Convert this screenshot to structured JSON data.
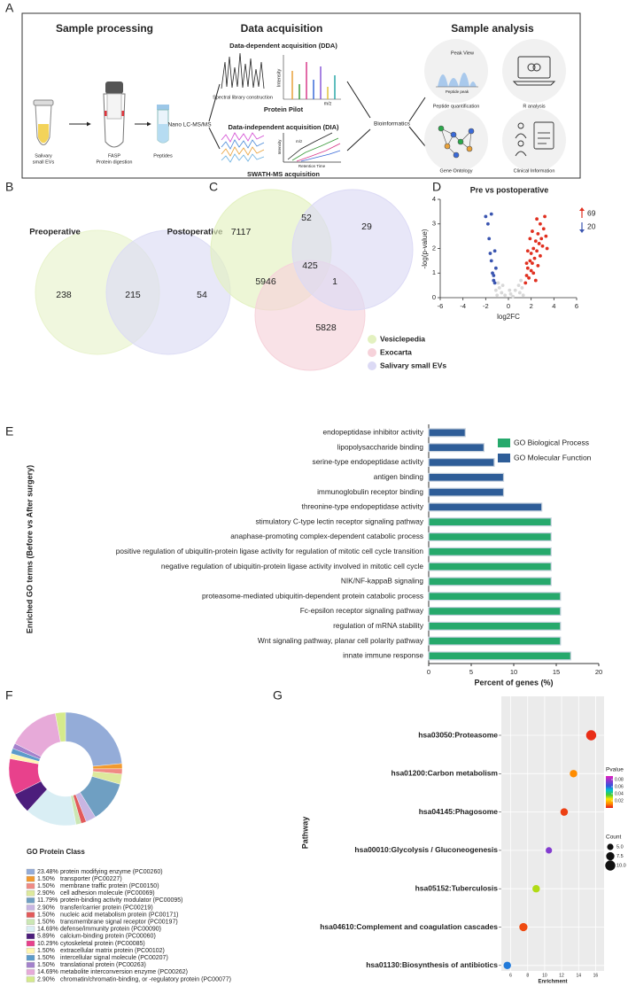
{
  "panel_labels": [
    "A",
    "B",
    "C",
    "D",
    "E",
    "F",
    "G"
  ],
  "workflow": {
    "sample_processing": {
      "title": "Sample processing",
      "items": [
        [
          "Salivary",
          "small EVs"
        ],
        [
          "FASP",
          "Protein digestion"
        ],
        [
          "Peptides"
        ]
      ]
    },
    "instrument": "Nano LC-MS/MS",
    "data_acquisition": {
      "title": "Data acquisition",
      "dda": "Data-dependent acquisition (DDA)",
      "dda_plot": "Spectral library construction",
      "dda_software": "Protein Pilot",
      "dda_axes": [
        "Intensity",
        "m/z"
      ],
      "dia": "Data-independent acquisition (DIA)",
      "dia_axes": [
        "Intensity",
        "m/z",
        "Retention Time"
      ],
      "dia_software": "SWATH-MS acquisition"
    },
    "bioinformatics": "Bioinformatics",
    "sample_analysis": {
      "title": "Sample analysis",
      "peak_view": "Peak View",
      "peak_axis": "Peptide peak",
      "items": [
        "Peptide quantification",
        "R analysis",
        "Gene Ontology",
        "Clinical Information"
      ]
    }
  },
  "chart_data": [
    {
      "type": "venn",
      "sets": [
        "Preoperative",
        "Postoperative"
      ],
      "colors": [
        "#e8f3cc",
        "#dcdcf4"
      ],
      "values": [
        238,
        215,
        54
      ],
      "legend": false
    },
    {
      "type": "venn",
      "sets": [
        "Vesiclepedia",
        "Exocarta",
        "Salivary small EVs"
      ],
      "colors": [
        "#e3f1c0",
        "#f6d2da",
        "#dcdaf5"
      ],
      "values": [
        7117,
        52,
        29,
        425,
        5946,
        1,
        5828
      ],
      "legend": true
    },
    {
      "type": "scatter",
      "title": "Pre vs postoperative",
      "xlabel": "log2FC",
      "ylabel": "-log(p-value)",
      "xlim": [
        -6,
        6
      ],
      "xticks": [
        -6,
        -4,
        -2,
        0,
        2,
        4,
        6
      ],
      "ylim": [
        0,
        4
      ],
      "yticks": [
        0,
        1,
        2,
        3,
        4
      ],
      "annotations": [
        {
          "text": "69",
          "color": "#e03020",
          "direction": "up"
        },
        {
          "text": "20",
          "color": "#3a55b0",
          "direction": "down"
        }
      ],
      "series": [
        {
          "color": "#d8d8d8",
          "x": [
            -1.0,
            -0.6,
            -0.3,
            0.2,
            0.6,
            1.0,
            1.2,
            -0.8,
            0.4,
            -1.1,
            0.9,
            1.3,
            -0.5,
            0.1,
            1.1,
            -0.9
          ],
          "y": [
            0.1,
            0.2,
            0.1,
            0.15,
            0.3,
            0.2,
            0.4,
            0.4,
            0.05,
            0.3,
            0.5,
            0.1,
            0.5,
            0.3,
            0.7,
            0.6
          ]
        },
        {
          "color": "#e03020",
          "x": [
            1.5,
            1.6,
            1.7,
            1.8,
            1.9,
            2.0,
            2.0,
            2.1,
            2.2,
            2.3,
            2.4,
            2.5,
            2.6,
            2.7,
            2.8,
            2.9,
            3.0,
            3.1,
            3.3,
            2.5,
            1.7,
            2.2,
            2.6,
            3.2,
            1.9,
            2.4,
            2.8,
            1.6,
            3.4,
            2.1
          ],
          "y": [
            0.6,
            0.9,
            1.2,
            0.8,
            1.5,
            1.1,
            1.8,
            1.4,
            2.0,
            1.6,
            2.3,
            1.9,
            2.6,
            2.2,
            3.0,
            2.4,
            2.1,
            2.8,
            2.5,
            3.2,
            1.9,
            1.0,
            1.3,
            3.3,
            2.4,
            0.7,
            1.7,
            1.4,
            2.0,
            2.7
          ]
        },
        {
          "color": "#3a55b0",
          "x": [
            -1.2,
            -1.3,
            -1.1,
            -1.5,
            -1.4,
            -1.6,
            -1.2,
            -1.7,
            -2.0,
            -1.5,
            -1.8,
            -1.3
          ],
          "y": [
            0.6,
            0.9,
            1.2,
            1.5,
            1.0,
            1.8,
            1.9,
            2.4,
            3.3,
            3.4,
            3.0,
            0.7
          ]
        }
      ]
    },
    {
      "type": "barh",
      "xlabel": "Percent of genes (%)",
      "ylabel": "Enriched GO terms (Before vs After surgery)",
      "xlim": [
        0,
        20
      ],
      "xticks": [
        0,
        5,
        10,
        15,
        20
      ],
      "categories": [
        "endopeptidase inhibitor activity",
        "lipopolysaccharide binding",
        "serine-type endopeptidase activity",
        "antigen binding",
        "immunoglobulin receptor binding",
        "threonine-type endopeptidase activity",
        "stimulatory C-type lectin receptor signaling pathway",
        "anaphase-promoting complex-dependent catabolic process",
        "positive regulation of ubiquitin-protein ligase activity for regulation of mitotic cell cycle transition",
        "negative regulation of ubiquitin-protein ligase activity involved in mitotic cell cycle",
        "NIK/NF-kappaB signaling",
        "proteasome-mediated ubiquitin-dependent protein catabolic process",
        "Fc-epsilon receptor signaling pathway",
        "regulation of mRNA stability",
        "Wnt signaling pathway, planar cell polarity pathway",
        "innate immune response"
      ],
      "series": [
        {
          "name": "GO Biological Process",
          "color": "#26a96c",
          "values": [
            null,
            null,
            null,
            null,
            null,
            null,
            14.4,
            14.4,
            14.4,
            14.4,
            14.4,
            15.5,
            15.5,
            15.5,
            15.5,
            16.7
          ]
        },
        {
          "name": "GO Molecular Function",
          "color": "#2e5d98",
          "values": [
            4.3,
            6.5,
            7.7,
            8.8,
            8.8,
            13.3,
            null,
            null,
            null,
            null,
            null,
            null,
            null,
            null,
            null,
            null
          ]
        }
      ]
    },
    {
      "type": "pie",
      "donut": true,
      "title": "GO Protein Class",
      "categories": [
        "protein modifying enzyme (PC00260)",
        "transporter (PC00227)",
        "membrane traffic protein (PC00150)",
        "cell adhesion molecule (PC00069)",
        "protein-binding activity modulator (PC00095)",
        "transfer/carrier protein (PC00219)",
        "nucleic acid metabolism protein (PC00171)",
        "transmembrane signal receptor (PC00197)",
        "defense/immunity protein (PC00090)",
        "calcium-binding protein (PC00060)",
        "cytoskeletal protein (PC00085)",
        "extracellular matrix protein (PC00102)",
        "intercellular signal molecule (PC00207)",
        "translational protein (PC00263)",
        "metabolite interconversion enzyme (PC00262)",
        "chromatin/chromatin-binding, or -regulatory protein (PC00077)"
      ],
      "values": [
        23.48,
        1.5,
        1.5,
        2.9,
        11.79,
        2.9,
        1.5,
        1.5,
        14.69,
        5.89,
        10.29,
        1.5,
        1.5,
        1.5,
        14.69,
        2.9
      ],
      "value_labels": [
        "23.48%",
        "1.50%",
        "1.50%",
        "2.90%",
        "11.79%",
        "2.90%",
        "1.50%",
        "1.50%",
        "14.69%",
        "5.89%",
        "10.29%",
        "1.50%",
        "1.50%",
        "1.50%",
        "14.69%",
        "2.90%"
      ],
      "colors": [
        "#94acd8",
        "#f29a2e",
        "#f08a84",
        "#dde99c",
        "#6f9fc2",
        "#c8b5e2",
        "#e25a5a",
        "#cbe7b4",
        "#d9eef4",
        "#4c1d7c",
        "#e8418c",
        "#fff6b2",
        "#5c9bca",
        "#a482cc",
        "#e7aad9",
        "#d5ea8c"
      ]
    },
    {
      "type": "dot",
      "xlabel": "Enrichment",
      "ylabel": "Pathway",
      "categories": [
        "hsa03050:Proteasome",
        "hsa01200:Carbon metabolism",
        "hsa04145:Phagosome",
        "hsa00010:Glycolysis / Gluconeogenesis",
        "hsa05152:Tuberculosis",
        "hsa04610:Complement and coagulation cascades",
        "hsa01130:Biosynthesis of antibiotics"
      ],
      "values": [
        15.48,
        13.4,
        12.3,
        10.5,
        9.0,
        7.5,
        5.6
      ],
      "pvalues": [
        0.002,
        0.012,
        0.004,
        0.075,
        0.03,
        0.005,
        0.058
      ],
      "counts": [
        10,
        6.5,
        6.5,
        5,
        6.5,
        7.5,
        6.5
      ],
      "xlim": [
        4.9,
        17
      ],
      "xticks": [
        6,
        8,
        10,
        12,
        14,
        16
      ],
      "color_title": "Pvalue",
      "clim": [
        0,
        0.09
      ],
      "cticks": [
        0.02,
        0.04,
        0.06,
        0.08
      ],
      "colorscale": {
        "stops": [
          0,
          0.012,
          0.025,
          0.037,
          0.05,
          0.062,
          0.09
        ],
        "colors": [
          "#e41a1c",
          "#ff8c00",
          "#ffe600",
          "#44cc33",
          "#00c4d0",
          "#3355dd",
          "#e020c0"
        ]
      },
      "size_title": "Count",
      "size_ticks": [
        {
          "value": 5,
          "label": "5.0"
        },
        7.5,
        {
          "value": 10,
          "label": "10.0"
        }
      ]
    }
  ]
}
